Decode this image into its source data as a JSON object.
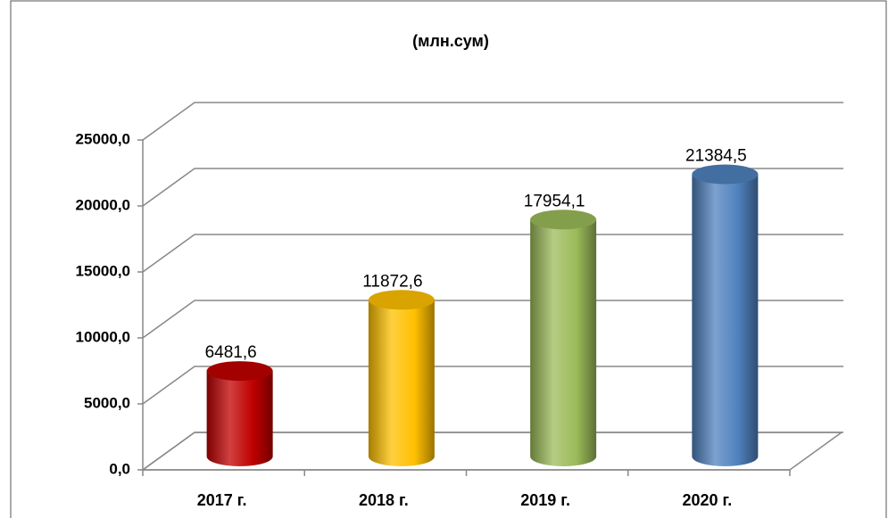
{
  "chart_data": {
    "type": "bar3d",
    "title": "(млн.сум)",
    "categories": [
      "2017 г.",
      "2018 г.",
      "2019 г.",
      "2020 г."
    ],
    "values": [
      6481.6,
      11872.6,
      17954.1,
      21384.5
    ],
    "value_labels": [
      "6481,6",
      "11872,6",
      "17954,1",
      "21384,5"
    ],
    "colors": [
      "#c00000",
      "#ffc000",
      "#9bbb59",
      "#4f81bd"
    ],
    "ylim": [
      0,
      25000
    ],
    "yticks": [
      {
        "value": 0,
        "label": "0,0"
      },
      {
        "value": 5000,
        "label": "5000,0"
      },
      {
        "value": 10000,
        "label": "10000,0"
      },
      {
        "value": 15000,
        "label": "15000,0"
      },
      {
        "value": 20000,
        "label": "20000,0"
      },
      {
        "value": 25000,
        "label": "25000,0"
      }
    ],
    "grid": true
  }
}
